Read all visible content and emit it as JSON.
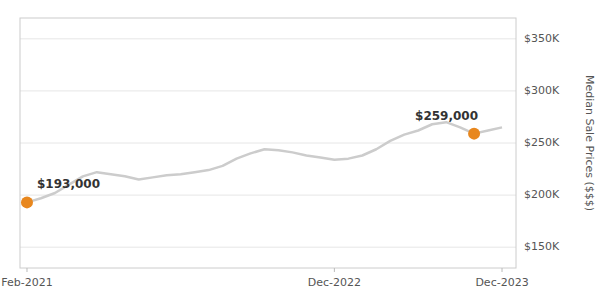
{
  "chart_data": {
    "type": "line",
    "ylabel": "Median Sale Prices ($$$)",
    "x": [
      0,
      1,
      2,
      3,
      4,
      5,
      6,
      7,
      8,
      9,
      10,
      11,
      12,
      13,
      14,
      15,
      16,
      17,
      18,
      19,
      20,
      21,
      22,
      23,
      24,
      25,
      26,
      27,
      28,
      29,
      30,
      31,
      32,
      33,
      34
    ],
    "values": [
      193000,
      197000,
      202000,
      210000,
      218000,
      222000,
      220000,
      218000,
      215000,
      217000,
      219000,
      220000,
      222000,
      224000,
      228000,
      235000,
      240000,
      244000,
      243000,
      241000,
      238000,
      236000,
      234000,
      235000,
      238000,
      244000,
      252000,
      258000,
      262000,
      268000,
      270000,
      265000,
      259000,
      262000,
      265000
    ],
    "color": "#cccccc",
    "xlim": [
      -0.5,
      35
    ],
    "xticks": [
      {
        "value": 0,
        "label": "Feb-2021"
      },
      {
        "value": 22,
        "label": "Dec-2022"
      },
      {
        "value": 34,
        "label": "Dec-2023"
      }
    ],
    "ylim": [
      130000,
      370000
    ],
    "yticks": [
      {
        "value": 150000,
        "label": "$150K"
      },
      {
        "value": 200000,
        "label": "$200K"
      },
      {
        "value": 250000,
        "label": "$250K"
      },
      {
        "value": 300000,
        "label": "$300K"
      },
      {
        "value": 350000,
        "label": "$350K"
      }
    ],
    "grid": true,
    "annotations": [
      {
        "label": "$193,000",
        "x": 0,
        "y": 193000,
        "color": "#E8871E"
      },
      {
        "label": "$259,000",
        "x": 32,
        "y": 259000,
        "color": "#E8871E"
      }
    ]
  }
}
